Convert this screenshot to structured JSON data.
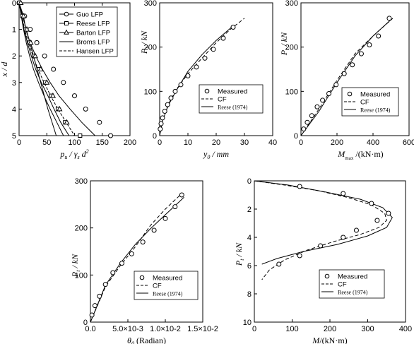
{
  "chart_data": [
    {
      "id": "p1",
      "type": "line",
      "xlabel": "p_u / γ_s d^2",
      "ylabel": "x / d",
      "xlim": [
        0,
        200
      ],
      "ylim": [
        0,
        5
      ],
      "y_inverted": true,
      "x_ticks": [
        "0",
        "50",
        "100",
        "150",
        "200"
      ],
      "y_ticks": [
        "0",
        "1",
        "2",
        "3",
        "4",
        "5"
      ],
      "legend": [
        "Guo LFP",
        "Reese LFP",
        "Barton LFP",
        "Broms LFP",
        "Hansen LFP"
      ],
      "legend_position": "top-right",
      "series": [
        {
          "name": "Guo LFP",
          "x": [
            0,
            8,
            12,
            20,
            30,
            42,
            56,
            72,
            92,
            113,
            137,
            165
          ],
          "y": [
            0,
            0.5,
            1,
            1.5,
            2,
            2.5,
            3,
            3.5,
            4,
            4.5,
            5,
            5
          ]
        },
        {
          "name": "Reese LFP",
          "x": [
            0,
            5,
            9,
            15,
            22,
            30,
            40,
            52,
            63,
            75,
            90,
            110
          ],
          "y": [
            0,
            0.5,
            1,
            1.5,
            2,
            2.5,
            3,
            3.5,
            4,
            4.5,
            5,
            5
          ]
        },
        {
          "name": "Barton LFP",
          "x": [
            0,
            4,
            8,
            13,
            19,
            26,
            35,
            45,
            56,
            68,
            80,
            95
          ],
          "y": [
            0,
            0.5,
            1,
            1.5,
            2,
            2.5,
            3,
            3.5,
            4,
            4.5,
            5,
            5
          ]
        },
        {
          "name": "Broms LFP",
          "x": [
            0,
            13,
            26,
            39,
            52,
            67
          ],
          "y": [
            0,
            1,
            2,
            3,
            4,
            5
          ]
        },
        {
          "name": "Hansen LFP",
          "x": [
            0,
            5,
            10,
            17,
            25,
            34,
            45,
            57,
            70,
            85,
            100
          ],
          "y": [
            0,
            0.5,
            1,
            1.5,
            2,
            2.5,
            3,
            3.5,
            4,
            4.5,
            5
          ]
        }
      ],
      "markers_series": {
        "Guo LFP": {
          "x": [
            0,
            10,
            20,
            32,
            46,
            62,
            80,
            100,
            120,
            145,
            165
          ],
          "y": [
            0,
            0.5,
            1,
            1.5,
            2,
            2.5,
            3,
            3.5,
            4,
            4.5,
            5
          ]
        },
        "Reese LFP": {
          "x": [
            0,
            6,
            12,
            19,
            27,
            36,
            47,
            58,
            70,
            83,
            110
          ],
          "y": [
            0,
            0.5,
            1,
            1.5,
            2,
            2.5,
            3,
            3.5,
            4,
            4.5,
            5
          ]
        },
        "Barton LFP": {
          "x": [
            3,
            8,
            14,
            21,
            29,
            39,
            50,
            61,
            73,
            86
          ],
          "y": [
            0,
            0.5,
            1,
            1.5,
            2,
            2.5,
            3,
            3.5,
            4,
            4.5
          ]
        }
      }
    },
    {
      "id": "p2",
      "type": "line",
      "xlabel": "y0 / mm",
      "ylabel": "P_t / kN",
      "xlim": [
        0,
        40
      ],
      "ylim": [
        0,
        300
      ],
      "x_ticks": [
        "0",
        "10",
        "20",
        "30",
        "40"
      ],
      "y_ticks": [
        "0",
        "100",
        "200",
        "300"
      ],
      "legend": [
        "Measured",
        "CF",
        "Reese (1974)"
      ],
      "legend_position": "bottom-right",
      "series": [
        {
          "name": "Measured",
          "type": "scatter",
          "x": [
            0.2,
            0.5,
            1,
            1.8,
            2.8,
            4,
            5.5,
            7.5,
            10,
            13,
            16,
            19,
            22.5,
            26
          ],
          "y": [
            15,
            27,
            40,
            55,
            70,
            85,
            100,
            115,
            135,
            155,
            175,
            195,
            220,
            245
          ]
        },
        {
          "name": "CF",
          "x": [
            0,
            1,
            3,
            6,
            10,
            15,
            20,
            25,
            30
          ],
          "y": [
            0,
            35,
            70,
            105,
            140,
            175,
            210,
            240,
            265
          ]
        },
        {
          "name": "Reese (1974)",
          "x": [
            0,
            1,
            3,
            6,
            10,
            15,
            20,
            26
          ],
          "y": [
            0,
            33,
            68,
            103,
            145,
            183,
            215,
            248
          ]
        }
      ]
    },
    {
      "id": "p3",
      "type": "line",
      "xlabel": "M_max /(kN·m)",
      "ylabel": "P_t / kN",
      "xlim": [
        0,
        600
      ],
      "ylim": [
        0,
        300
      ],
      "x_ticks": [
        "0",
        "200",
        "400",
        "600"
      ],
      "y_ticks": [
        "0",
        "100",
        "200",
        "300"
      ],
      "legend": [
        "Measured",
        "CF",
        "Reese (1974)"
      ],
      "legend_position": "bottom-right",
      "series": [
        {
          "name": "Measured",
          "type": "scatter",
          "x": [
            15,
            35,
            60,
            90,
            120,
            155,
            195,
            240,
            285,
            335,
            380,
            430,
            490
          ],
          "y": [
            15,
            30,
            45,
            65,
            80,
            95,
            115,
            140,
            160,
            185,
            205,
            225,
            265
          ]
        },
        {
          "name": "CF",
          "x": [
            0,
            100,
            200,
            300,
            400,
            510
          ],
          "y": [
            0,
            60,
            125,
            185,
            225,
            265
          ]
        },
        {
          "name": "Reese (1974)",
          "x": [
            0,
            100,
            200,
            300,
            400,
            500
          ],
          "y": [
            0,
            55,
            120,
            180,
            225,
            262
          ]
        }
      ]
    },
    {
      "id": "p4",
      "type": "line",
      "xlabel": "θ0 (Radian)",
      "ylabel": "P_t / kN",
      "xlim": [
        0,
        0.015
      ],
      "ylim": [
        0,
        300
      ],
      "x_ticks": [
        "0.0",
        "5.0×10-3",
        "1.0×10-2",
        "1.5×10-2"
      ],
      "y_ticks": [
        "0",
        "100",
        "200",
        "300"
      ],
      "legend": [
        "Measured",
        "CF",
        "Reese (1974)"
      ],
      "legend_position": "bottom-right",
      "series": [
        {
          "name": "Measured",
          "type": "scatter",
          "x": [
            0.0002,
            0.0006,
            0.0012,
            0.002,
            0.003,
            0.0042,
            0.0055,
            0.007,
            0.0085,
            0.01,
            0.0113,
            0.0122
          ],
          "y": [
            15,
            35,
            55,
            80,
            105,
            125,
            145,
            170,
            195,
            220,
            245,
            270
          ]
        },
        {
          "name": "CF",
          "x": [
            0,
            0.002,
            0.004,
            0.006,
            0.008,
            0.01,
            0.012
          ],
          "y": [
            0,
            75,
            120,
            160,
            205,
            240,
            270
          ]
        },
        {
          "name": "Reese (1974)",
          "x": [
            0,
            0.002,
            0.004,
            0.006,
            0.008,
            0.01,
            0.0125
          ],
          "y": [
            0,
            78,
            125,
            165,
            198,
            228,
            265
          ]
        }
      ]
    },
    {
      "id": "p5",
      "type": "line",
      "xlabel": "M/(kN·m)",
      "ylabel": "P_t / kN",
      "xlim": [
        0,
        400
      ],
      "ylim": [
        10,
        0
      ],
      "x_ticks": [
        "0",
        "100",
        "200",
        "300",
        "400"
      ],
      "y_ticks": [
        "0",
        "2",
        "4",
        "6",
        "8",
        "10"
      ],
      "legend": [
        "Measured",
        "CF",
        "Reese (1974)"
      ],
      "legend_position": "bottom-right",
      "series": [
        {
          "name": "Measured",
          "type": "scatter",
          "x": [
            120,
            235,
            310,
            355,
            325,
            270,
            235,
            175,
            120,
            65
          ],
          "y": [
            0.4,
            0.9,
            1.6,
            2.3,
            2.8,
            3.5,
            4.0,
            4.6,
            5.3,
            5.9
          ]
        },
        {
          "name": "CF",
          "x": [
            0,
            80,
            170,
            250,
            310,
            345,
            350,
            330,
            280,
            210,
            140,
            80,
            40,
            20
          ],
          "y": [
            0,
            0.3,
            0.7,
            1.2,
            1.7,
            2.3,
            2.8,
            3.3,
            3.8,
            4.3,
            4.9,
            5.6,
            6.3,
            7.0
          ]
        },
        {
          "name": "Reese (1974)",
          "x": [
            0,
            90,
            190,
            280,
            340,
            365,
            350,
            300,
            220,
            130,
            60,
            20
          ],
          "y": [
            0,
            0.3,
            0.8,
            1.3,
            1.9,
            2.6,
            3.3,
            3.9,
            4.5,
            5.0,
            5.5,
            5.9
          ]
        }
      ]
    }
  ]
}
